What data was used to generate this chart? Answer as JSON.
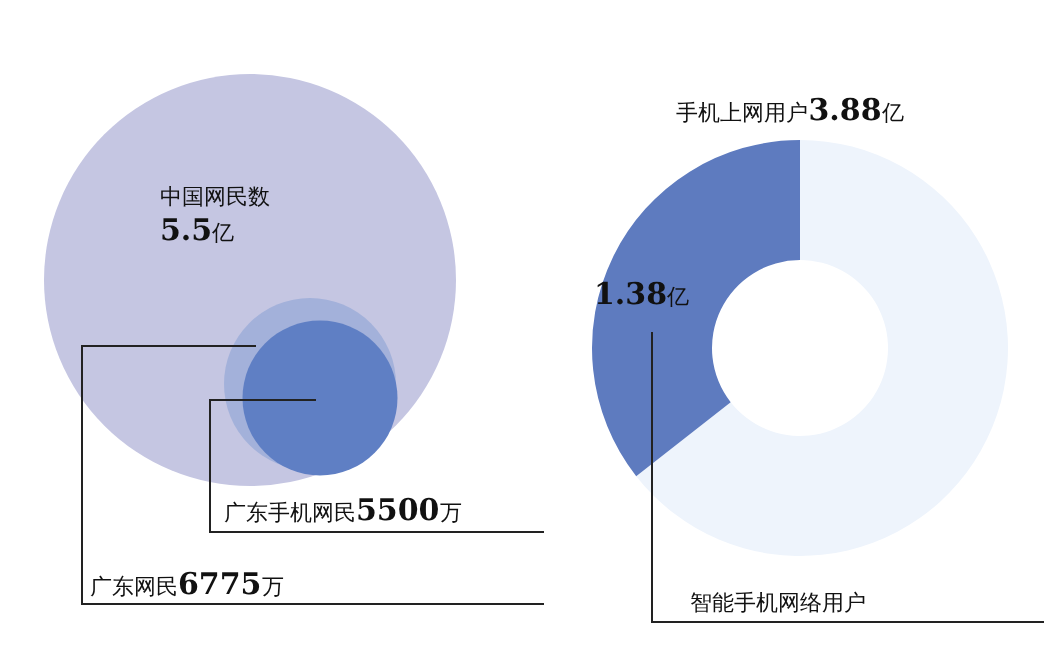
{
  "chart_data": [
    {
      "type": "other",
      "categories": [
        "中国网民数",
        "广东网民",
        "广东手机网民"
      ],
      "values": [
        5.5,
        6775,
        5500
      ],
      "value_labels": [
        "5.5亿",
        "6775万",
        "5500万"
      ],
      "colors": [
        "#c5c6e2",
        "#a3b1da",
        "#5f7fc4"
      ]
    },
    {
      "type": "donut",
      "title": "手机上网用户3.88亿",
      "categories": [
        null,
        "智能手机网络用户"
      ],
      "values": [
        2.5,
        1.38
      ],
      "value_labels": [
        null,
        "1.38亿"
      ],
      "colors": [
        "#eef4fc",
        "#5e7bbf"
      ]
    }
  ]
}
